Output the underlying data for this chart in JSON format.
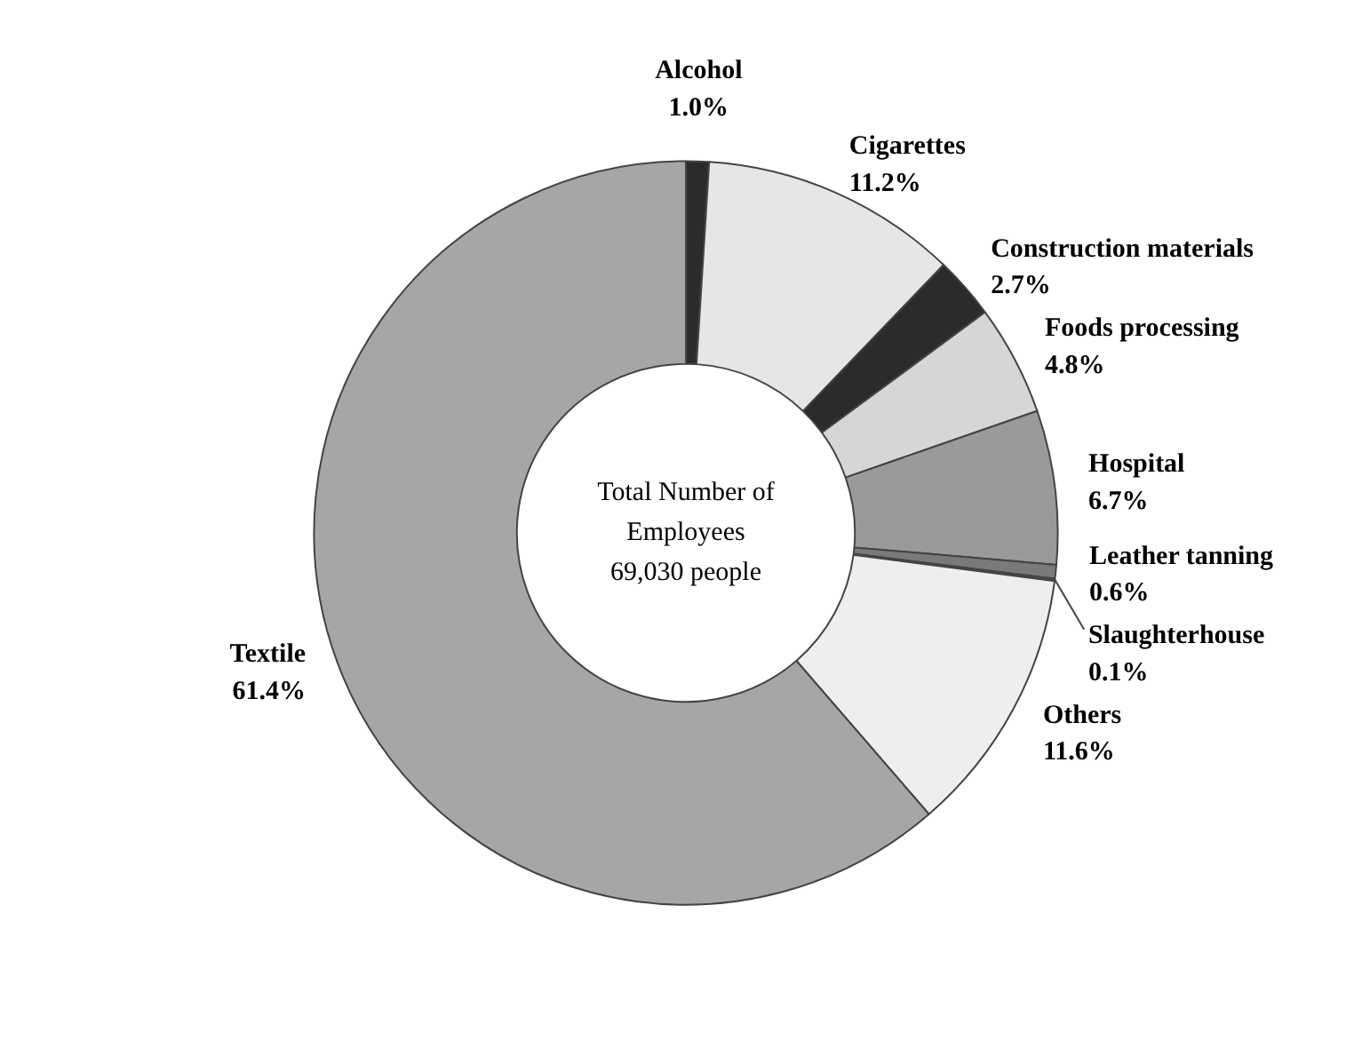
{
  "chart_data": {
    "type": "donut",
    "categories": [
      "Alcohol",
      "Cigarettes",
      "Construction materials",
      "Foods processing",
      "Hospital",
      "Leather tanning",
      "Slaughterhouse",
      "Others",
      "Textile"
    ],
    "values": [
      1.0,
      11.2,
      2.7,
      4.8,
      6.7,
      0.6,
      0.1,
      11.6,
      61.4
    ],
    "value_labels": [
      "1.0%",
      "11.2%",
      "2.7%",
      "4.8%",
      "6.7%",
      "0.6%",
      "0.1%",
      "11.6%",
      "61.4%"
    ],
    "colors": [
      "#2b2b2b",
      "#e6e6e6",
      "#2b2b2b",
      "#d6d6d6",
      "#9a9a9a",
      "#7a7a7a",
      "#555555",
      "#eeeeee",
      "#a6a6a6"
    ],
    "annotations": [
      "Total Number of\nEmployees\n69,030 people"
    ]
  }
}
